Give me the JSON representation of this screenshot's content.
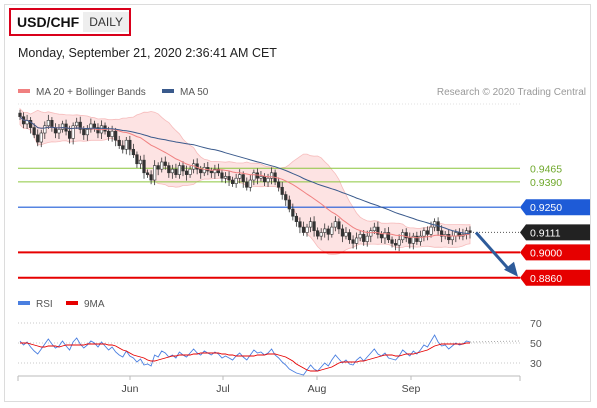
{
  "header": {
    "pair": "USD/CHF",
    "period": "DAILY",
    "timestamp": "Monday, September 21, 2020 2:36:41 AM CET"
  },
  "colors": {
    "bollinger": "#f08080",
    "ma50": "#3a5a8c",
    "support_red": "#e60000",
    "resistance_green": "#8cc63f",
    "blue_level": "#1e5bd7",
    "current_price_bg": "#222222",
    "rsi": "#4a7fe0",
    "rsi_ma": "#e60000",
    "arrow": "#2e5b9a"
  },
  "chart_data": [
    {
      "type": "candlestick",
      "legend": [
        {
          "name": "MA 20 + Bollinger Bands",
          "color": "#f08080"
        },
        {
          "name": "MA 50",
          "color": "#3a5a8c"
        }
      ],
      "credit": "Research © 2020 Trading Central",
      "x_ticks": [
        "Jun",
        "Jul",
        "Aug",
        "Sep"
      ],
      "y_range": [
        0.882,
        0.987
      ],
      "levels": [
        {
          "value": 0.9465,
          "label": "0.9465",
          "style": "green"
        },
        {
          "value": 0.939,
          "label": "0.9390",
          "style": "green"
        },
        {
          "value": 0.925,
          "label": "0.9250",
          "style": "blue"
        },
        {
          "value": 0.9111,
          "label": "0.9111",
          "style": "current"
        },
        {
          "value": 0.9,
          "label": "0.9000",
          "style": "red"
        },
        {
          "value": 0.886,
          "label": "0.8860",
          "style": "red"
        }
      ],
      "close": [
        0.975,
        0.971,
        0.973,
        0.969,
        0.965,
        0.961,
        0.966,
        0.97,
        0.973,
        0.969,
        0.966,
        0.968,
        0.971,
        0.967,
        0.963,
        0.97,
        0.972,
        0.968,
        0.965,
        0.968,
        0.971,
        0.969,
        0.966,
        0.97,
        0.967,
        0.964,
        0.967,
        0.962,
        0.959,
        0.957,
        0.962,
        0.957,
        0.954,
        0.949,
        0.951,
        0.944,
        0.943,
        0.94,
        0.948,
        0.946,
        0.95,
        0.948,
        0.944,
        0.946,
        0.943,
        0.948,
        0.945,
        0.943,
        0.946,
        0.949,
        0.946,
        0.944,
        0.947,
        0.945,
        0.944,
        0.946,
        0.944,
        0.941,
        0.942,
        0.94,
        0.938,
        0.941,
        0.943,
        0.939,
        0.936,
        0.94,
        0.944,
        0.941,
        0.942,
        0.939,
        0.941,
        0.944,
        0.939,
        0.936,
        0.932,
        0.929,
        0.924,
        0.92,
        0.917,
        0.914,
        0.911,
        0.914,
        0.917,
        0.912,
        0.909,
        0.911,
        0.913,
        0.91,
        0.914,
        0.917,
        0.913,
        0.909,
        0.911,
        0.907,
        0.905,
        0.908,
        0.91,
        0.906,
        0.909,
        0.912,
        0.914,
        0.91,
        0.908,
        0.911,
        0.907,
        0.905,
        0.904,
        0.907,
        0.911,
        0.908,
        0.905,
        0.909,
        0.906,
        0.909,
        0.912,
        0.91,
        0.914,
        0.917,
        0.912,
        0.909,
        0.91,
        0.907,
        0.909,
        0.911,
        0.909,
        0.91,
        0.912,
        0.911
      ],
      "rsi": {
        "legend": [
          {
            "name": "RSI",
            "color": "#4a7fe0"
          },
          {
            "name": "9MA",
            "color": "#e60000"
          }
        ],
        "levels": [
          70,
          50,
          30
        ],
        "y_range": [
          20,
          80
        ],
        "values": [
          52,
          48,
          51,
          46,
          42,
          39,
          44,
          49,
          54,
          49,
          45,
          47,
          52,
          47,
          43,
          51,
          55,
          49,
          45,
          48,
          52,
          50,
          46,
          51,
          47,
          43,
          46,
          41,
          38,
          36,
          42,
          37,
          35,
          31,
          34,
          28,
          29,
          27,
          38,
          36,
          42,
          40,
          36,
          38,
          35,
          41,
          38,
          36,
          40,
          44,
          40,
          38,
          42,
          40,
          38,
          41,
          39,
          35,
          37,
          35,
          33,
          37,
          40,
          36,
          33,
          38,
          43,
          40,
          41,
          38,
          40,
          44,
          38,
          35,
          31,
          28,
          24,
          22,
          20,
          19,
          18,
          23,
          28,
          24,
          22,
          26,
          30,
          27,
          33,
          38,
          34,
          30,
          33,
          29,
          28,
          33,
          36,
          32,
          36,
          40,
          44,
          39,
          37,
          40,
          35,
          34,
          33,
          37,
          43,
          40,
          37,
          42,
          39,
          43,
          48,
          46,
          52,
          58,
          51,
          47,
          48,
          44,
          47,
          50,
          48,
          49,
          52,
          51
        ],
        "ma9": [
          50,
          50,
          50,
          49,
          48,
          47,
          46,
          46,
          47,
          47,
          47,
          46,
          47,
          48,
          48,
          48,
          48,
          48,
          48,
          49,
          49,
          49,
          49,
          49,
          49,
          48,
          48,
          47,
          45,
          43,
          42,
          40,
          38,
          37,
          36,
          35,
          33,
          32,
          32,
          33,
          34,
          35,
          36,
          37,
          37,
          38,
          38,
          38,
          38,
          39,
          39,
          40,
          40,
          40,
          40,
          40,
          40,
          39,
          39,
          38,
          38,
          37,
          37,
          37,
          37,
          37,
          37,
          38,
          38,
          38,
          39,
          39,
          39,
          38,
          37,
          36,
          34,
          32,
          29,
          27,
          25,
          23,
          22,
          22,
          22,
          23,
          24,
          25,
          26,
          28,
          30,
          31,
          31,
          31,
          31,
          31,
          32,
          32,
          33,
          34,
          35,
          36,
          37,
          38,
          38,
          38,
          37,
          37,
          38,
          39,
          39,
          39,
          40,
          41,
          42,
          43,
          45,
          47,
          48,
          49,
          49,
          49,
          49,
          49,
          49,
          49,
          50,
          50
        ]
      }
    }
  ]
}
